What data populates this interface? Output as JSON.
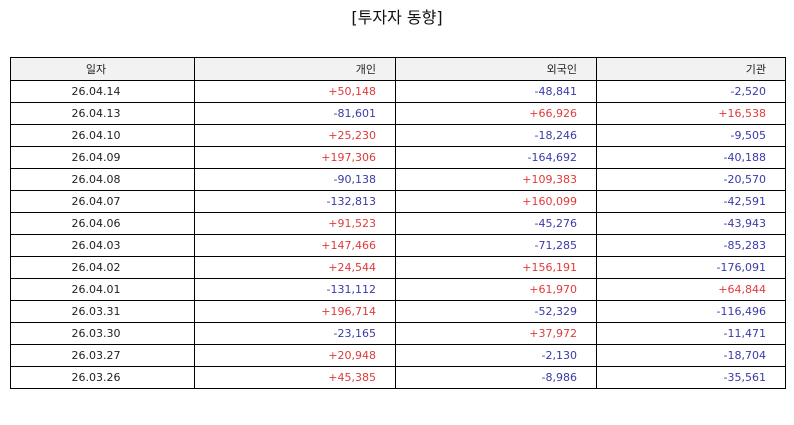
{
  "title": "[투자자 동향]",
  "columns": [
    "일자",
    "개인",
    "외국인",
    "기관"
  ],
  "colors": {
    "positive": "#e03a3a",
    "negative": "#3a3aa8"
  },
  "rows": [
    [
      "26.04.14",
      "+50,148",
      "-48,841",
      "-2,520"
    ],
    [
      "26.04.13",
      "-81,601",
      "+66,926",
      "+16,538"
    ],
    [
      "26.04.10",
      "+25,230",
      "-18,246",
      "-9,505"
    ],
    [
      "26.04.09",
      "+197,306",
      "-164,692",
      "-40,188"
    ],
    [
      "26.04.08",
      "-90,138",
      "+109,383",
      "-20,570"
    ],
    [
      "26.04.07",
      "-132,813",
      "+160,099",
      "-42,591"
    ],
    [
      "26.04.06",
      "+91,523",
      "-45,276",
      "-43,943"
    ],
    [
      "26.04.03",
      "+147,466",
      "-71,285",
      "-85,283"
    ],
    [
      "26.04.02",
      "+24,544",
      "+156,191",
      "-176,091"
    ],
    [
      "26.04.01",
      "-131,112",
      "+61,970",
      "+64,844"
    ],
    [
      "26.03.31",
      "+196,714",
      "-52,329",
      "-116,496"
    ],
    [
      "26.03.30",
      "-23,165",
      "+37,972",
      "-11,471"
    ],
    [
      "26.03.27",
      "+20,948",
      "-2,130",
      "-18,704"
    ],
    [
      "26.03.26",
      "+45,385",
      "-8,986",
      "-35,561"
    ]
  ]
}
